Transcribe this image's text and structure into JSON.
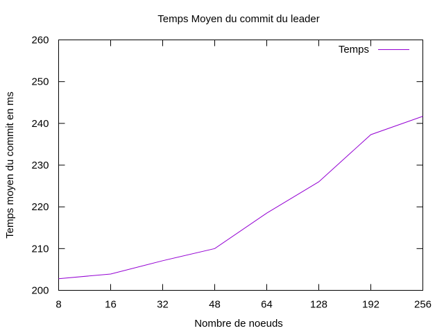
{
  "chart_data": {
    "type": "line",
    "title": "Temps Moyen du commit du leader",
    "xlabel": "Nombre de noeuds",
    "ylabel": "Temps moyen du commit en ms",
    "categories": [
      "8",
      "16",
      "32",
      "48",
      "64",
      "128",
      "192",
      "256"
    ],
    "series": [
      {
        "name": "Temps",
        "color": "#9400d3",
        "values": [
          202.8,
          203.9,
          207.1,
          210.0,
          218.5,
          226.0,
          237.3,
          241.7
        ]
      }
    ],
    "ylim": [
      200,
      260
    ],
    "yticks": [
      200,
      210,
      220,
      230,
      240,
      250,
      260
    ],
    "grid": false,
    "legend_position": "top-right"
  }
}
